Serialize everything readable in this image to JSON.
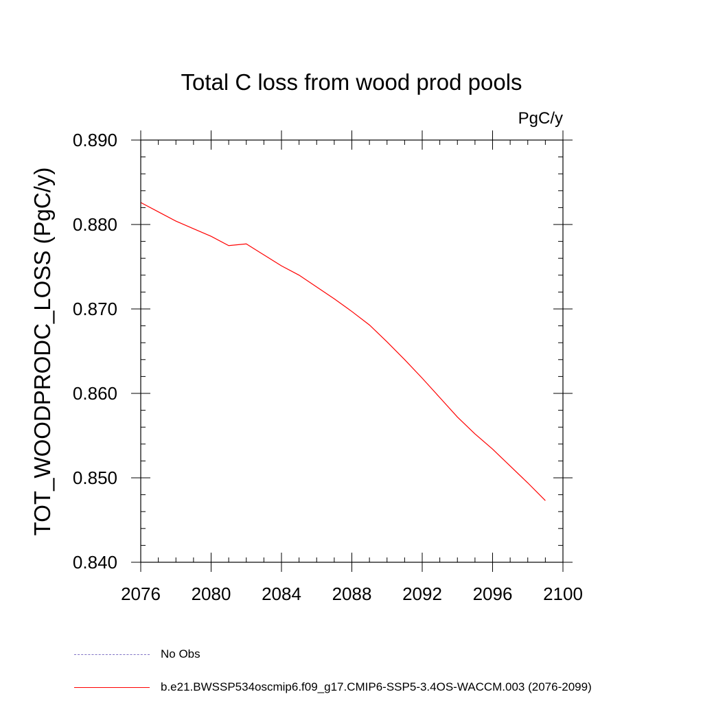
{
  "chart_data": {
    "type": "line",
    "title": "Total C loss from wood prod pools",
    "units_label": "PgC/y",
    "ylabel": "TOT_WOODPRODC_LOSS  (PgC/y)",
    "xlabel": "",
    "xlim": [
      2076,
      2100
    ],
    "ylim": [
      0.84,
      0.89
    ],
    "x_ticks": [
      2076,
      2080,
      2084,
      2088,
      2092,
      2096,
      2100
    ],
    "y_ticks": [
      0.84,
      0.85,
      0.86,
      0.87,
      0.88,
      0.89
    ],
    "x_tick_labels": [
      "2076",
      "2080",
      "2084",
      "2088",
      "2092",
      "2096",
      "2100"
    ],
    "y_tick_labels": [
      "0.840",
      "0.850",
      "0.860",
      "0.870",
      "0.880",
      "0.890"
    ],
    "grid": false,
    "legend_position": "bottom-left",
    "series": [
      {
        "name": "b.e21.BWSSP534oscmip6.f09_g17.CMIP6-SSP5-3.4OS-WACCM.003 (2076-2099)",
        "color": "#ff0000",
        "style": "solid",
        "x": [
          2076,
          2077,
          2078,
          2079,
          2080,
          2081,
          2082,
          2083,
          2084,
          2085,
          2086,
          2087,
          2088,
          2089,
          2090,
          2091,
          2092,
          2093,
          2094,
          2095,
          2096,
          2097,
          2098,
          2099
        ],
        "y": [
          0.8826,
          0.8815,
          0.8804,
          0.8795,
          0.8786,
          0.8775,
          0.8777,
          0.8764,
          0.8751,
          0.874,
          0.8726,
          0.8712,
          0.8697,
          0.8681,
          0.8661,
          0.864,
          0.8618,
          0.8595,
          0.8572,
          0.8552,
          0.8534,
          0.8514,
          0.8494,
          0.8473
        ]
      }
    ],
    "legend": [
      {
        "label": "No Obs",
        "color": "#7f72c4",
        "style": "dashed"
      },
      {
        "label": "b.e21.BWSSP534oscmip6.f09_g17.CMIP6-SSP5-3.4OS-WACCM.003 (2076-2099)",
        "color": "#ff0000",
        "style": "solid"
      }
    ]
  }
}
